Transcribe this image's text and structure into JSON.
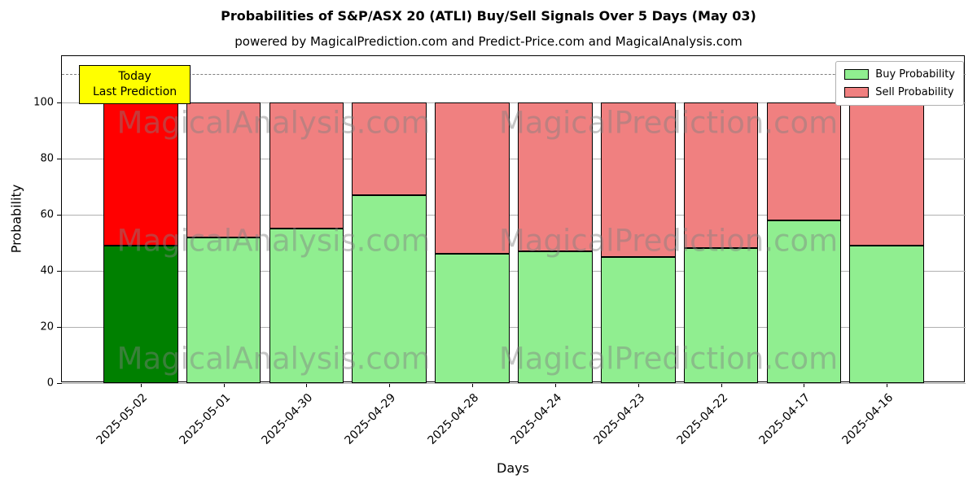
{
  "chart_data": {
    "type": "bar",
    "stacked": true,
    "title": "Probabilities of S&P/ASX 20 (ATLI) Buy/Sell Signals Over 5 Days (May 03)",
    "subtitle": "powered by MagicalPrediction.com and Predict-Price.com and MagicalAnalysis.com",
    "xlabel": "Days",
    "ylabel": "Probability",
    "categories": [
      "2025-05-02",
      "2025-05-01",
      "2025-04-30",
      "2025-04-29",
      "2025-04-28",
      "2025-04-24",
      "2025-04-23",
      "2025-04-22",
      "2025-04-17",
      "2025-04-16"
    ],
    "series": [
      {
        "name": "Buy Probability",
        "color": "#90ee90",
        "values": [
          49,
          52,
          55,
          67,
          46,
          47,
          45,
          48,
          58,
          49
        ]
      },
      {
        "name": "Sell Probability",
        "color": "#f08080",
        "values": [
          51,
          48,
          45,
          33,
          54,
          53,
          55,
          52,
          42,
          51
        ]
      }
    ],
    "highlight": {
      "index": 0,
      "buy_color": "#008000",
      "sell_color": "#ff0000"
    },
    "yticks": [
      0,
      20,
      40,
      60,
      80,
      100
    ],
    "ylim": [
      0,
      116.5
    ],
    "threshold_line": {
      "y": 110,
      "style": "dashed",
      "color": "#808080"
    },
    "grid": true,
    "legend_position": "upper right",
    "bar_edge_color": "#000000",
    "watermarks": [
      "MagicalAnalysis.com",
      "MagicalPrediction.com"
    ]
  },
  "annotation": {
    "lines": [
      "Today",
      "Last Prediction"
    ],
    "background": "#ffff00"
  }
}
